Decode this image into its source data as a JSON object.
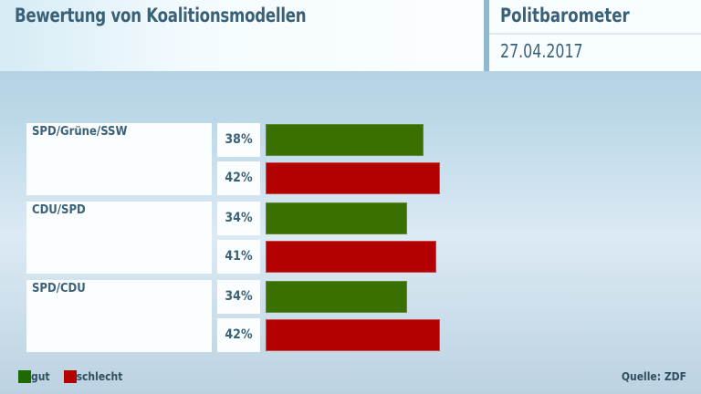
{
  "header": {
    "title": "Bewertung von Koalitionsmodellen",
    "brand": "Politbarometer",
    "date": "27.04.2017"
  },
  "legend": {
    "gut": "gut",
    "schlecht": "schlecht",
    "colors": {
      "gut": "#3a7000",
      "schlecht": "#b30000"
    }
  },
  "source": "Quelle: ZDF",
  "groups": [
    {
      "label": "SPD/Grüne/SSW",
      "gut_label": "38%",
      "schlecht_label": "42%"
    },
    {
      "label": "CDU/SPD",
      "gut_label": "34%",
      "schlecht_label": "41%"
    },
    {
      "label": "SPD/CDU",
      "gut_label": "34%",
      "schlecht_label": "42%"
    }
  ],
  "chart_data": {
    "type": "bar",
    "orientation": "horizontal",
    "title": "Bewertung von Koalitionsmodellen",
    "subtitle": "Politbarometer 27.04.2017",
    "categories": [
      "SPD/Grüne/SSW",
      "CDU/SPD",
      "SPD/CDU"
    ],
    "series": [
      {
        "name": "gut",
        "color": "#3a7000",
        "values": [
          38,
          34,
          34
        ]
      },
      {
        "name": "schlecht",
        "color": "#b30000",
        "values": [
          42,
          41,
          42
        ]
      }
    ],
    "unit": "%",
    "xlabel": "",
    "ylabel": "",
    "grid": false,
    "legend_position": "bottom-left",
    "source": "Quelle: ZDF"
  }
}
